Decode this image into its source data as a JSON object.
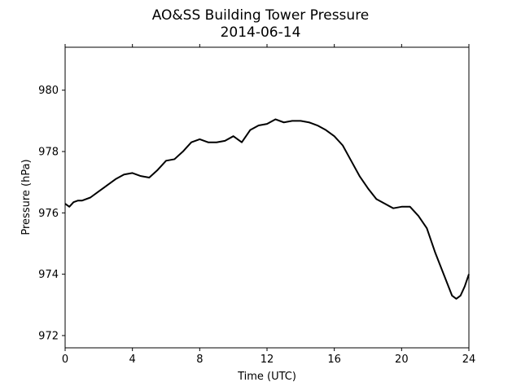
{
  "chart_data": {
    "type": "line",
    "title": "AO&SS Building Tower Pressure",
    "subtitle": "2014-06-14",
    "xlabel": "Time (UTC)",
    "ylabel": "Pressure (hPa)",
    "xlim": [
      0,
      24
    ],
    "ylim": [
      971.6,
      981.4
    ],
    "xticks": [
      0,
      4,
      8,
      12,
      16,
      20,
      24
    ],
    "yticks": [
      972,
      974,
      976,
      978,
      980
    ],
    "grid": false,
    "line_color": "#000000",
    "series": [
      {
        "x": [
          0,
          0.25,
          0.5,
          0.75,
          1.0,
          1.5,
          2.0,
          2.5,
          3.0,
          3.5,
          4.0,
          4.5,
          5.0,
          5.5,
          6.0,
          6.5,
          7.0,
          7.5,
          8.0,
          8.5,
          9.0,
          9.5,
          10.0,
          10.5,
          11.0,
          11.5,
          12.0,
          12.5,
          13.0,
          13.5,
          14.0,
          14.5,
          15.0,
          15.5,
          16.0,
          16.5,
          17.0,
          17.5,
          18.0,
          18.5,
          19.0,
          19.5,
          20.0,
          20.5,
          21.0,
          21.5,
          22.0,
          22.5,
          23.0,
          23.25,
          23.5,
          23.75,
          24.0
        ],
        "y": [
          976.3,
          976.2,
          976.35,
          976.4,
          976.4,
          976.5,
          976.7,
          976.9,
          977.1,
          977.25,
          977.3,
          977.2,
          977.15,
          977.4,
          977.7,
          977.75,
          978.0,
          978.3,
          978.4,
          978.3,
          978.3,
          978.35,
          978.5,
          978.3,
          978.7,
          978.85,
          978.9,
          979.05,
          978.95,
          979.0,
          979.0,
          978.95,
          978.85,
          978.7,
          978.5,
          978.2,
          977.7,
          977.2,
          976.8,
          976.45,
          976.3,
          976.15,
          976.2,
          976.2,
          975.9,
          975.5,
          974.7,
          974.0,
          973.3,
          973.2,
          973.3,
          973.6,
          974.0
        ]
      }
    ]
  }
}
